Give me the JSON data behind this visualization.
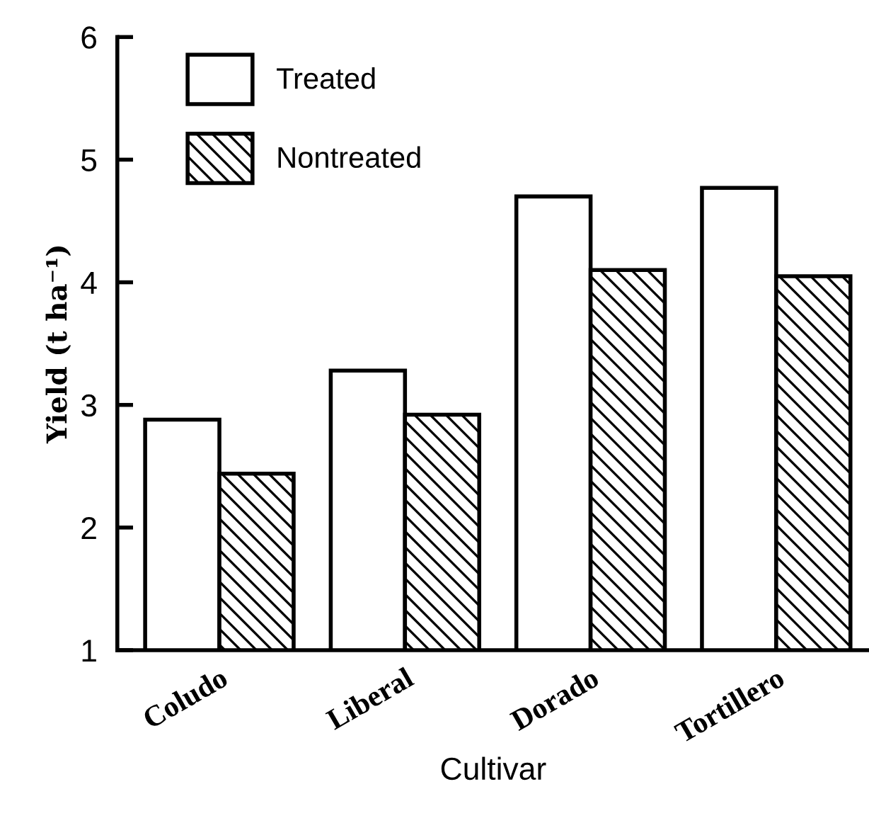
{
  "chart_data": {
    "type": "bar",
    "xlabel": "Cultivar",
    "ylabel": "Yield (t ha⁻¹)",
    "categories": [
      "Coludo",
      "Liberal",
      "Dorado",
      "Tortillero"
    ],
    "series": [
      {
        "name": "Treated",
        "color": "#ffffff",
        "values": [
          2.88,
          3.28,
          4.7,
          4.77
        ]
      },
      {
        "name": "Nontreated",
        "color": "#000000",
        "values": [
          2.44,
          2.92,
          4.1,
          4.05
        ]
      }
    ],
    "ylim": [
      1,
      6
    ],
    "yticks": [
      1,
      2,
      3,
      4,
      5,
      6
    ],
    "legend": "top left",
    "grid": false
  }
}
